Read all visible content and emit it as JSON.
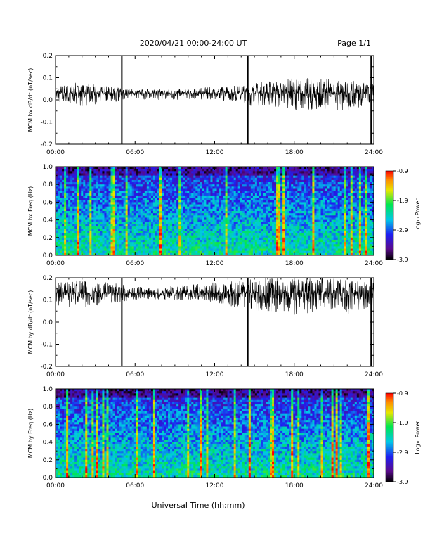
{
  "header": {
    "date_range": "2020/04/21  00:00-24:00 UT",
    "page": "Page 1/1"
  },
  "x_axis": {
    "ticks": [
      "00:00",
      "06:00",
      "12:00",
      "18:00",
      "24:00"
    ],
    "label": "Universal Time (hh:mm)"
  },
  "chart_data": [
    {
      "type": "line",
      "ylabel": "MCM bx dB/dt (nT/sec)",
      "ylim": [
        -0.2,
        0.2
      ],
      "yticks": [
        "0.2",
        "0.1",
        "0.0",
        "-0.1",
        "-0.2"
      ],
      "xlim_hours": [
        0,
        24
      ],
      "baseline": 0.03,
      "spikes_hours": [
        5.0,
        14.5,
        23.8
      ],
      "x": [
        0,
        2,
        4,
        6,
        8,
        10,
        12,
        14,
        16,
        18,
        20,
        22,
        24
      ],
      "y_upper": [
        0.07,
        0.08,
        0.06,
        0.05,
        0.05,
        0.05,
        0.06,
        0.07,
        0.09,
        0.1,
        0.1,
        0.09,
        0.07
      ],
      "y_lower": [
        -0.01,
        -0.03,
        -0.01,
        0.0,
        0.0,
        0.0,
        0.0,
        -0.02,
        -0.04,
        -0.05,
        -0.04,
        -0.05,
        -0.02
      ]
    },
    {
      "type": "heatmap",
      "ylabel": "MCM bx Freq (Hz)",
      "ylim": [
        0.0,
        1.0
      ],
      "yticks": [
        "1.0",
        "0.8",
        "0.6",
        "0.4",
        "0.2",
        "0.0"
      ],
      "xlim_hours": [
        0,
        24
      ],
      "colorbar": {
        "label": "Log₁₀ Power",
        "ticks": [
          "-0.9",
          "-1.9",
          "-2.9",
          "-3.9"
        ],
        "range": [
          -3.9,
          -0.9
        ]
      }
    },
    {
      "type": "line",
      "ylabel": "MCM by dB/dt (nT/sec)",
      "ylim": [
        -0.2,
        0.2
      ],
      "yticks": [
        "0.2",
        "0.1",
        "0.0",
        "-0.1",
        "-0.2"
      ],
      "xlim_hours": [
        0,
        24
      ],
      "baseline": 0.13,
      "spikes_hours": [
        5.0,
        14.5,
        23.8
      ],
      "x": [
        0,
        2,
        4,
        6,
        8,
        10,
        12,
        14,
        16,
        18,
        20,
        22,
        24
      ],
      "y_upper": [
        0.18,
        0.19,
        0.18,
        0.16,
        0.16,
        0.17,
        0.18,
        0.19,
        0.2,
        0.2,
        0.2,
        0.19,
        0.18
      ],
      "y_lower": [
        0.07,
        0.06,
        0.08,
        0.1,
        0.1,
        0.1,
        0.09,
        0.06,
        0.04,
        0.03,
        0.04,
        0.03,
        0.07
      ]
    },
    {
      "type": "heatmap",
      "ylabel": "MCM by Freq (Hz)",
      "ylim": [
        0.0,
        1.0
      ],
      "yticks": [
        "1.0",
        "0.8",
        "0.6",
        "0.4",
        "0.2",
        "0.0"
      ],
      "xlim_hours": [
        0,
        24
      ],
      "colorbar": {
        "label": "Log₁₀ Power",
        "ticks": [
          "-0.9",
          "-1.9",
          "-2.9",
          "-3.9"
        ],
        "range": [
          -3.9,
          -0.9
        ]
      }
    }
  ]
}
